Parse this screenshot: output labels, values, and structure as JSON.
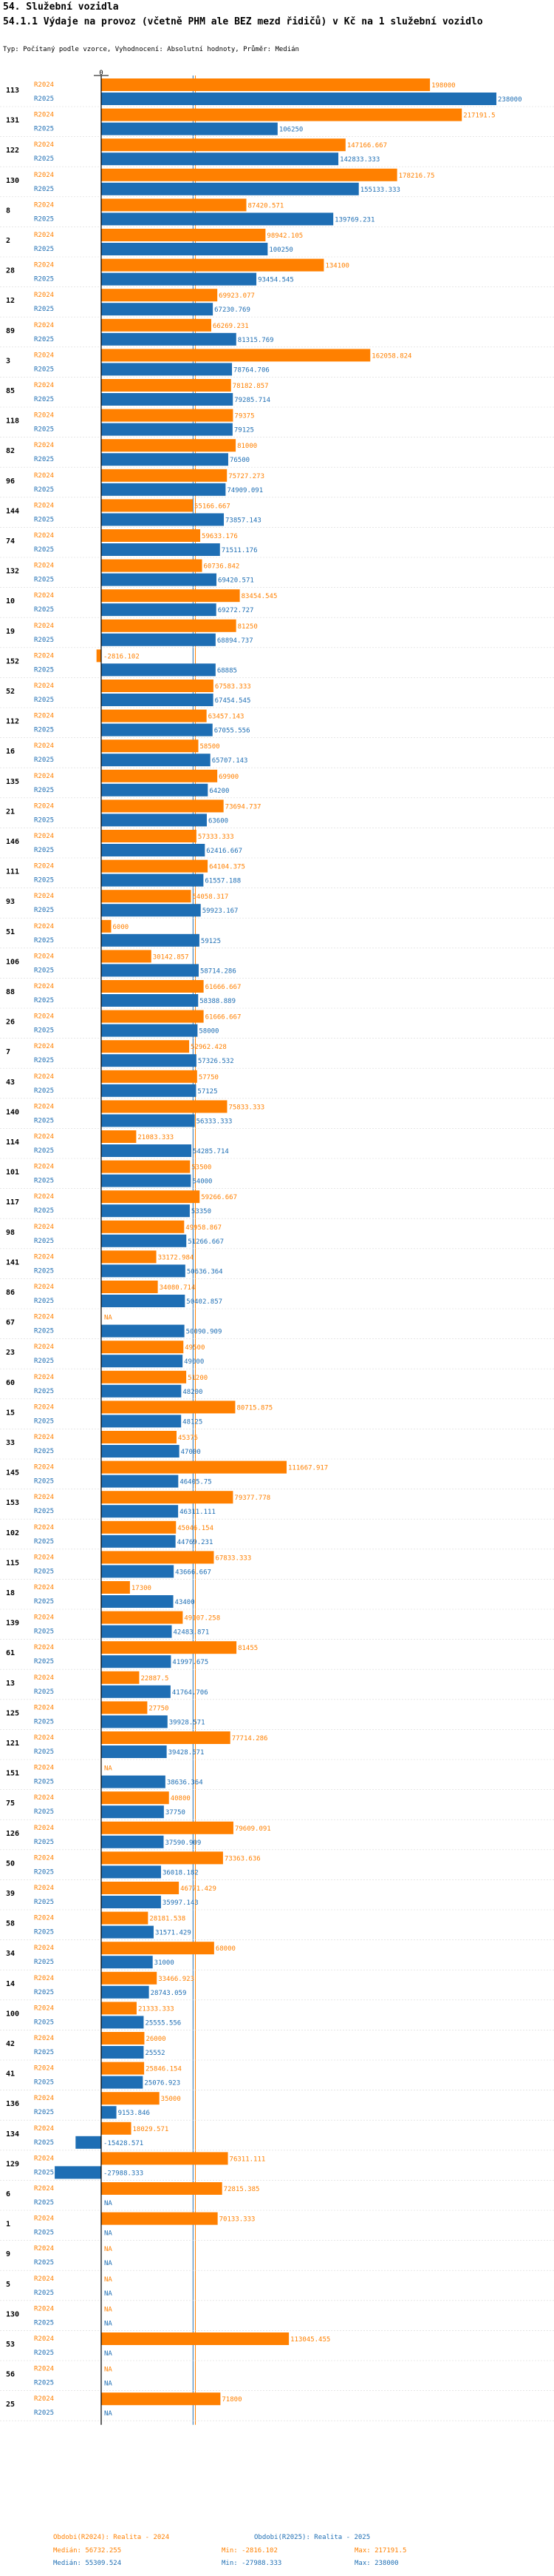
{
  "header": {
    "title": "54. Služební vozidla",
    "subtitle": "54.1.1 Výdaje na provoz (včetně PHM ale BEZ mezd řidičů) v Kč na 1 služební vozidlo",
    "type_line": "Typ: Počítaný podle vzorce, Vyhodnocení: Absolutní hodnoty, Průměr: Medián"
  },
  "chart_data": {
    "type": "bar",
    "orientation": "horizontal",
    "axis_zero_label": "0",
    "series_labels": {
      "r2024": "R2024",
      "r2025": "R2025"
    },
    "colors": {
      "r2024": "#ff8000",
      "r2025": "#1e6eb4"
    },
    "xlim": [
      -30000,
      240000
    ],
    "median_lines": {
      "r2024": 56732.255,
      "r2025": 55309.524
    },
    "na_label": "NA",
    "groups": [
      {
        "id": "113",
        "r2024": 198000,
        "l2024": "198000",
        "r2025": 238000,
        "l2025": "238000"
      },
      {
        "id": "131",
        "r2024": 217191.5,
        "l2024": "217191.5",
        "r2025": 106250,
        "l2025": "106250"
      },
      {
        "id": "122",
        "r2024": 147166.667,
        "l2024": "147166.667",
        "r2025": 142833.333,
        "l2025": "142833.333"
      },
      {
        "id": "130",
        "r2024": 178216.75,
        "l2024": "178216.75",
        "r2025": 155133.333,
        "l2025": "155133.333"
      },
      {
        "id": "8",
        "r2024": 87420.571,
        "l2024": "87420.571",
        "r2025": 139769.231,
        "l2025": "139769.231"
      },
      {
        "id": "2",
        "r2024": 98942.105,
        "l2024": "98942.105",
        "r2025": 100250,
        "l2025": "100250"
      },
      {
        "id": "28",
        "r2024": 134100,
        "l2024": "134100",
        "r2025": 93454.545,
        "l2025": "93454.545"
      },
      {
        "id": "12",
        "r2024": 69923.077,
        "l2024": "69923.077",
        "r2025": 67230.769,
        "l2025": "67230.769"
      },
      {
        "id": "89",
        "r2024": 66269.231,
        "l2024": "66269.231",
        "r2025": 81315.769,
        "l2025": "81315.769"
      },
      {
        "id": "3",
        "r2024": 162058.824,
        "l2024": "162058.824",
        "r2025": 78764.706,
        "l2025": "78764.706"
      },
      {
        "id": "85",
        "r2024": 78182.857,
        "l2024": "78182.857",
        "r2025": 79285.714,
        "l2025": "79285.714"
      },
      {
        "id": "118",
        "r2024": 79375,
        "l2024": "79375",
        "r2025": 79125,
        "l2025": "79125"
      },
      {
        "id": "82",
        "r2024": 81000,
        "l2024": "81000",
        "r2025": 76500,
        "l2025": "76500"
      },
      {
        "id": "96",
        "r2024": 75727.273,
        "l2024": "75727.273",
        "r2025": 74909.091,
        "l2025": "74909.091"
      },
      {
        "id": "144",
        "r2024": 55166.667,
        "l2024": "55166.667",
        "r2025": 73857.143,
        "l2025": "73857.143"
      },
      {
        "id": "74",
        "r2024": 59633.176,
        "l2024": "59633.176",
        "r2025": 71511.176,
        "l2025": "71511.176"
      },
      {
        "id": "132",
        "r2024": 60736.842,
        "l2024": "60736.842",
        "r2025": 69420.571,
        "l2025": "69420.571"
      },
      {
        "id": "10",
        "r2024": 83454.545,
        "l2024": "83454.545",
        "r2025": 69272.727,
        "l2025": "69272.727"
      },
      {
        "id": "19",
        "r2024": 81250,
        "l2024": "81250",
        "r2025": 68894.737,
        "l2025": "68894.737"
      },
      {
        "id": "152",
        "r2024": -2816.102,
        "l2024": "-2816.102",
        "r2025": 68885,
        "l2025": "68885"
      },
      {
        "id": "52",
        "r2024": 67583.333,
        "l2024": "67583.333",
        "r2025": 67454.545,
        "l2025": "67454.545"
      },
      {
        "id": "112",
        "r2024": 63457.143,
        "l2024": "63457.143",
        "r2025": 67055.556,
        "l2025": "67055.556"
      },
      {
        "id": "16",
        "r2024": 58500,
        "l2024": "58500",
        "r2025": 65707.143,
        "l2025": "65707.143"
      },
      {
        "id": "135",
        "r2024": 69900,
        "l2024": "69900",
        "r2025": 64200,
        "l2025": "64200"
      },
      {
        "id": "21",
        "r2024": 73694.737,
        "l2024": "73694.737",
        "r2025": 63600,
        "l2025": "63600"
      },
      {
        "id": "146",
        "r2024": 57333.333,
        "l2024": "57333.333",
        "r2025": 62416.667,
        "l2025": "62416.667"
      },
      {
        "id": "111",
        "r2024": 64104.375,
        "l2024": "64104.375",
        "r2025": 61557.188,
        "l2025": "61557.188"
      },
      {
        "id": "93",
        "r2024": 54058.317,
        "l2024": "54058.317",
        "r2025": 59923.167,
        "l2025": "59923.167"
      },
      {
        "id": "51",
        "r2024": 6000,
        "l2024": "6000",
        "r2025": 59125,
        "l2025": "59125"
      },
      {
        "id": "106",
        "r2024": 30142.857,
        "l2024": "30142.857",
        "r2025": 58714.286,
        "l2025": "58714.286"
      },
      {
        "id": "88",
        "r2024": 61666.667,
        "l2024": "61666.667",
        "r2025": 58388.889,
        "l2025": "58388.889"
      },
      {
        "id": "26",
        "r2024": 61666.667,
        "l2024": "61666.667",
        "r2025": 58000,
        "l2025": "58000"
      },
      {
        "id": "7",
        "r2024": 52962.428,
        "l2024": "52962.428",
        "r2025": 57326.532,
        "l2025": "57326.532"
      },
      {
        "id": "43",
        "r2024": 57750,
        "l2024": "57750",
        "r2025": 57125,
        "l2025": "57125"
      },
      {
        "id": "140",
        "r2024": 75833.333,
        "l2024": "75833.333",
        "r2025": 56333.333,
        "l2025": "56333.333"
      },
      {
        "id": "114",
        "r2024": 21083.333,
        "l2024": "21083.333",
        "r2025": 54285.714,
        "l2025": "54285.714"
      },
      {
        "id": "101",
        "r2024": 53500,
        "l2024": "53500",
        "r2025": 54000,
        "l2025": "54000"
      },
      {
        "id": "117",
        "r2024": 59266.667,
        "l2024": "59266.667",
        "r2025": 53350,
        "l2025": "53350"
      },
      {
        "id": "98",
        "r2024": 49958.867,
        "l2024": "49958.867",
        "r2025": 51266.667,
        "l2025": "51266.667"
      },
      {
        "id": "141",
        "r2024": 33172.984,
        "l2024": "33172.984",
        "r2025": 50636.364,
        "l2025": "50636.364"
      },
      {
        "id": "86",
        "r2024": 34080.714,
        "l2024": "34080.714",
        "r2025": 50402.857,
        "l2025": "50402.857"
      },
      {
        "id": "67",
        "r2024": null,
        "l2024": "NA",
        "r2025": 50090.909,
        "l2025": "50090.909"
      },
      {
        "id": "23",
        "r2024": 49500,
        "l2024": "49500",
        "r2025": 49000,
        "l2025": "49000"
      },
      {
        "id": "60",
        "r2024": 51200,
        "l2024": "51200",
        "r2025": 48200,
        "l2025": "48200"
      },
      {
        "id": "15",
        "r2024": 80715.875,
        "l2024": "80715.875",
        "r2025": 48125,
        "l2025": "48125"
      },
      {
        "id": "33",
        "r2024": 45375,
        "l2024": "45375",
        "r2025": 47000,
        "l2025": "47000"
      },
      {
        "id": "145",
        "r2024": 111667.917,
        "l2024": "111667.917",
        "r2025": 46405.75,
        "l2025": "46405.75"
      },
      {
        "id": "153",
        "r2024": 79377.778,
        "l2024": "79377.778",
        "r2025": 46311.111,
        "l2025": "46311.111"
      },
      {
        "id": "102",
        "r2024": 45046.154,
        "l2024": "45046.154",
        "r2025": 44769.231,
        "l2025": "44769.231"
      },
      {
        "id": "115",
        "r2024": 67833.333,
        "l2024": "67833.333",
        "r2025": 43666.667,
        "l2025": "43666.667"
      },
      {
        "id": "18",
        "r2024": 17300,
        "l2024": "17300",
        "r2025": 43400,
        "l2025": "43400"
      },
      {
        "id": "139",
        "r2024": 49107.258,
        "l2024": "49107.258",
        "r2025": 42483.871,
        "l2025": "42483.871"
      },
      {
        "id": "61",
        "r2024": 81455,
        "l2024": "81455",
        "r2025": 41997.675,
        "l2025": "41997.675"
      },
      {
        "id": "13",
        "r2024": 22887.5,
        "l2024": "22887.5",
        "r2025": 41764.706,
        "l2025": "41764.706"
      },
      {
        "id": "125",
        "r2024": 27750,
        "l2024": "27750",
        "r2025": 39928.571,
        "l2025": "39928.571"
      },
      {
        "id": "121",
        "r2024": 77714.286,
        "l2024": "77714.286",
        "r2025": 39428.571,
        "l2025": "39428.571"
      },
      {
        "id": "151",
        "r2024": null,
        "l2024": "NA",
        "r2025": 38636.364,
        "l2025": "38636.364"
      },
      {
        "id": "75",
        "r2024": 40800,
        "l2024": "40800",
        "r2025": 37750,
        "l2025": "37750"
      },
      {
        "id": "126",
        "r2024": 79609.091,
        "l2024": "79609.091",
        "r2025": 37590.909,
        "l2025": "37590.909"
      },
      {
        "id": "50",
        "r2024": 73363.636,
        "l2024": "73363.636",
        "r2025": 36018.182,
        "l2025": "36018.182"
      },
      {
        "id": "39",
        "r2024": 46771.429,
        "l2024": "46771.429",
        "r2025": 35997.143,
        "l2025": "35997.143"
      },
      {
        "id": "58",
        "r2024": 28181.538,
        "l2024": "28181.538",
        "r2025": 31571.429,
        "l2025": "31571.429"
      },
      {
        "id": "34",
        "r2024": 68000,
        "l2024": "68000",
        "r2025": 31000,
        "l2025": "31000"
      },
      {
        "id": "14",
        "r2024": 33466.923,
        "l2024": "33466.923",
        "r2025": 28743.059,
        "l2025": "28743.059"
      },
      {
        "id": "100",
        "r2024": 21333.333,
        "l2024": "21333.333",
        "r2025": 25555.556,
        "l2025": "25555.556"
      },
      {
        "id": "42",
        "r2024": 26000,
        "l2024": "26000",
        "r2025": 25552,
        "l2025": "25552"
      },
      {
        "id": "41",
        "r2024": 25846.154,
        "l2024": "25846.154",
        "r2025": 25076.923,
        "l2025": "25076.923"
      },
      {
        "id": "136",
        "r2024": 35000,
        "l2024": "35000",
        "r2025": 9153.846,
        "l2025": "9153.846"
      },
      {
        "id": "134",
        "r2024": 18029.571,
        "l2024": "18029.571",
        "r2025": -15428.571,
        "l2025": "-15428.571"
      },
      {
        "id": "129",
        "r2024": 76311.111,
        "l2024": "76311.111",
        "r2025": -27988.333,
        "l2025": "-27988.333"
      },
      {
        "id": "6",
        "r2024": 72815.385,
        "l2024": "72815.385",
        "r2025": null,
        "l2025": "NA"
      },
      {
        "id": "1",
        "r2024": 70133.333,
        "l2024": "70133.333",
        "r2025": null,
        "l2025": "NA"
      },
      {
        "id": "9",
        "r2024": null,
        "l2024": "NA",
        "r2025": null,
        "l2025": "NA"
      },
      {
        "id": "5",
        "r2024": null,
        "l2024": "NA",
        "r2025": null,
        "l2025": "NA"
      },
      {
        "id": "130",
        "r2024": null,
        "l2024": "NA",
        "r2025": null,
        "l2025": "NA"
      },
      {
        "id": "53",
        "r2024": 113045.455,
        "l2024": "113045.455",
        "r2025": null,
        "l2025": "NA"
      },
      {
        "id": "56",
        "r2024": null,
        "l2024": "NA",
        "r2025": null,
        "l2025": "NA"
      },
      {
        "id": "25",
        "r2024": 71800,
        "l2024": "71800",
        "r2025": null,
        "l2025": "NA"
      }
    ]
  },
  "legend": {
    "r2024": {
      "title": "Obdobi(R2024): Realita - 2024",
      "median": "Medián: 56732.255",
      "min": "Min: -2816.102",
      "max": "Max: 217191.5"
    },
    "r2025": {
      "title": "Obdobi(R2025): Realita - 2025",
      "median": "Medián: 55309.524",
      "min": "Min: -27988.333",
      "max": "Max: 238000"
    }
  }
}
